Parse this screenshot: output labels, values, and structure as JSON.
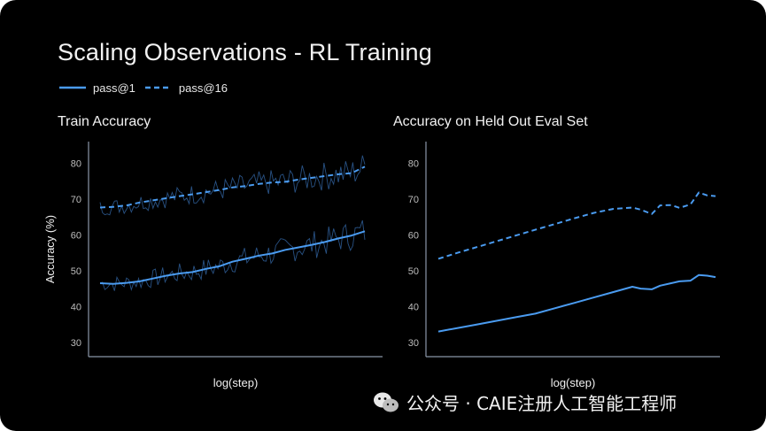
{
  "title": "Scaling Observations - RL Training",
  "legend": [
    {
      "label": "pass@1",
      "style": "solid"
    },
    {
      "label": "pass@16",
      "style": "dashed"
    }
  ],
  "colors": {
    "line": "#4a9bf0",
    "noise": "#2f5f9a",
    "axis": "#8a96a8",
    "background": "#000000"
  },
  "watermark": {
    "text": "公众号 · CAIE注册人工智能工程师",
    "icon": "wechat-icon"
  },
  "chart_data": [
    {
      "type": "line",
      "title": "Train Accuracy",
      "xlabel": "log(step)",
      "ylabel": "Accuracy (%)",
      "ylim": [
        26,
        86
      ],
      "yticks": [
        30,
        40,
        50,
        60,
        70,
        80
      ],
      "x": [
        0,
        0.05,
        0.1,
        0.15,
        0.2,
        0.25,
        0.3,
        0.35,
        0.4,
        0.45,
        0.5,
        0.55,
        0.6,
        0.65,
        0.7,
        0.75,
        0.8,
        0.85,
        0.9,
        0.95,
        1.0
      ],
      "series": [
        {
          "name": "pass@1",
          "style": "solid",
          "values": [
            46.5,
            46.3,
            46.6,
            47.0,
            47.8,
            48.6,
            49.2,
            49.6,
            50.5,
            51.2,
            52.5,
            53.3,
            54.2,
            54.8,
            55.8,
            56.5,
            57.2,
            58.0,
            59.0,
            59.8,
            61.0
          ]
        },
        {
          "name": "pass@16",
          "style": "dashed",
          "values": [
            67.6,
            67.8,
            68.2,
            69.0,
            69.6,
            70.2,
            70.8,
            71.3,
            71.9,
            72.5,
            73.2,
            73.6,
            74.2,
            74.6,
            74.8,
            75.4,
            75.9,
            76.4,
            76.9,
            77.2,
            79.0
          ]
        }
      ]
    },
    {
      "type": "line",
      "title": "Accuracy on Held Out Eval Set",
      "xlabel": "log(step)",
      "ylabel": "",
      "ylim": [
        26,
        86
      ],
      "yticks": [
        30,
        40,
        50,
        60,
        70,
        80
      ],
      "x": [
        0,
        0.07,
        0.14,
        0.21,
        0.28,
        0.35,
        0.42,
        0.49,
        0.56,
        0.63,
        0.7,
        0.73,
        0.77,
        0.8,
        0.84,
        0.87,
        0.91,
        0.94,
        0.97,
        1.0
      ],
      "series": [
        {
          "name": "pass@1",
          "style": "solid",
          "values": [
            33.0,
            34.0,
            35.0,
            36.0,
            37.0,
            38.0,
            39.5,
            41.0,
            42.5,
            44.0,
            45.5,
            45.0,
            44.8,
            45.8,
            46.5,
            47.0,
            47.2,
            48.8,
            48.6,
            48.2
          ]
        },
        {
          "name": "pass@16",
          "style": "dashed",
          "values": [
            53.3,
            55.0,
            56.6,
            58.2,
            59.8,
            61.4,
            63.0,
            64.6,
            66.1,
            67.2,
            67.6,
            67.0,
            65.8,
            68.2,
            68.3,
            67.5,
            68.5,
            71.8,
            71.0,
            70.8
          ]
        }
      ]
    }
  ]
}
